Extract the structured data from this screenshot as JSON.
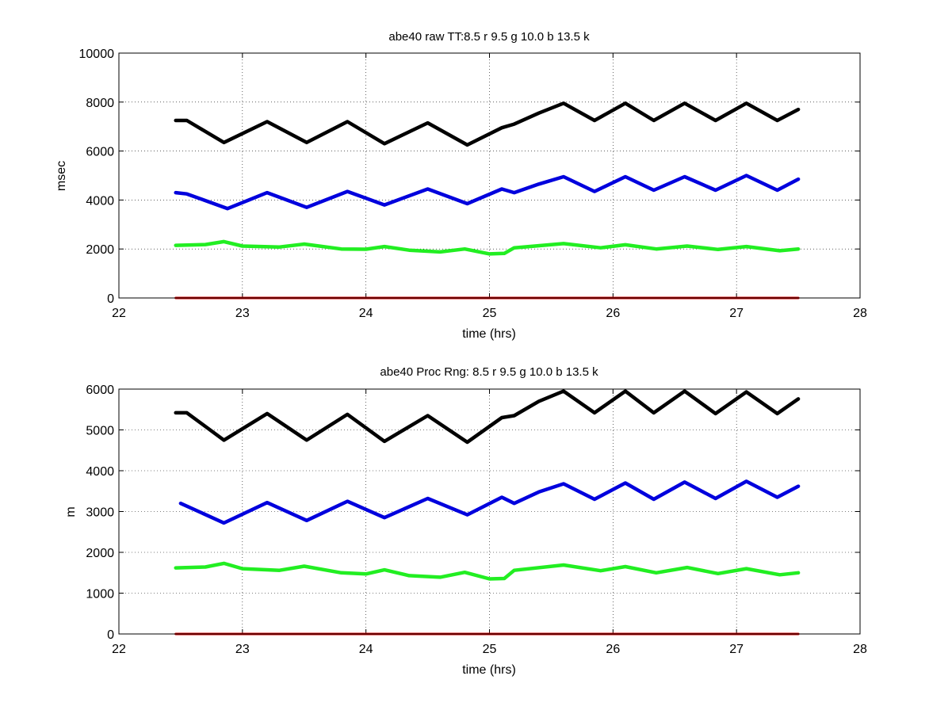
{
  "chart_data": [
    {
      "type": "scatter",
      "title": "abe40 raw TT:8.5 r  9.5 g  10.0 b  13.5 k",
      "xlabel": "time (hrs)",
      "ylabel": "msec",
      "xlim": [
        22,
        28
      ],
      "ylim": [
        0,
        10000
      ],
      "xticks": [
        "22",
        "23",
        "24",
        "25",
        "26",
        "27",
        "28"
      ],
      "yticks": [
        "0",
        "2000",
        "4000",
        "6000",
        "8000",
        "10000"
      ],
      "grid": true,
      "colors": {
        "r": "#cc0000",
        "g": "#22ee22",
        "b": "#0000dd",
        "k": "#000000"
      },
      "series": [
        {
          "color": "#000000",
          "x": [
            22.46,
            22.55,
            22.85,
            23.2,
            23.52,
            23.85,
            24.15,
            24.5,
            24.82,
            25.1,
            25.2,
            25.4,
            25.6,
            25.85,
            26.1,
            26.33,
            26.58,
            26.83,
            27.08,
            27.33,
            27.5
          ],
          "y": [
            7250,
            7250,
            6350,
            7200,
            6350,
            7200,
            6300,
            7150,
            6250,
            6950,
            7100,
            7550,
            7950,
            7250,
            7950,
            7250,
            7950,
            7250,
            7950,
            7250,
            7700
          ]
        },
        {
          "color": "#0000dd",
          "x": [
            22.46,
            22.55,
            22.88,
            23.2,
            23.52,
            23.85,
            24.15,
            24.5,
            24.82,
            25.1,
            25.2,
            25.4,
            25.6,
            25.85,
            26.1,
            26.33,
            26.58,
            26.83,
            27.08,
            27.33,
            27.5
          ],
          "y": [
            4300,
            4250,
            3650,
            4300,
            3700,
            4350,
            3800,
            4450,
            3850,
            4450,
            4300,
            4650,
            4950,
            4350,
            4950,
            4400,
            4950,
            4400,
            5000,
            4400,
            4850
          ]
        },
        {
          "color": "#22ee22",
          "x": [
            22.46,
            22.7,
            22.85,
            23.0,
            23.3,
            23.5,
            23.8,
            24.0,
            24.15,
            24.35,
            24.6,
            24.8,
            25.0,
            25.12,
            25.2,
            25.6,
            25.9,
            26.1,
            26.35,
            26.6,
            26.85,
            27.08,
            27.35,
            27.5
          ],
          "y": [
            2150,
            2180,
            2300,
            2120,
            2080,
            2200,
            2000,
            1990,
            2100,
            1950,
            1880,
            2000,
            1800,
            1820,
            2050,
            2220,
            2050,
            2170,
            2000,
            2120,
            1980,
            2100,
            1930,
            2000
          ]
        },
        {
          "color": "#cc0000",
          "x": [
            22.46,
            27.5
          ],
          "y": [
            0,
            0
          ]
        }
      ]
    },
    {
      "type": "scatter",
      "title": "abe40 Proc Rng: 8.5 r  9.5 g  10.0 b  13.5  k",
      "xlabel": "time (hrs)",
      "ylabel": "m",
      "xlim": [
        22,
        28
      ],
      "ylim": [
        0,
        6000
      ],
      "xticks": [
        "22",
        "23",
        "24",
        "25",
        "26",
        "27",
        "28"
      ],
      "yticks": [
        "0",
        "1000",
        "2000",
        "3000",
        "4000",
        "5000",
        "6000"
      ],
      "grid": true,
      "colors": {
        "r": "#cc0000",
        "g": "#22ee22",
        "b": "#0000dd",
        "k": "#000000"
      },
      "series": [
        {
          "color": "#000000",
          "x": [
            22.46,
            22.55,
            22.85,
            23.2,
            23.52,
            23.85,
            24.15,
            24.5,
            24.82,
            25.1,
            25.2,
            25.4,
            25.6,
            25.85,
            26.1,
            26.33,
            26.58,
            26.83,
            27.08,
            27.33,
            27.5
          ],
          "y": [
            5420,
            5420,
            4750,
            5400,
            4750,
            5380,
            4720,
            5350,
            4700,
            5300,
            5350,
            5700,
            5950,
            5420,
            5950,
            5420,
            5950,
            5400,
            5930,
            5400,
            5760
          ]
        },
        {
          "color": "#0000dd",
          "x": [
            22.5,
            22.85,
            23.2,
            23.52,
            23.85,
            24.15,
            24.5,
            24.82,
            25.1,
            25.2,
            25.4,
            25.6,
            25.85,
            26.1,
            26.33,
            26.58,
            26.83,
            27.08,
            27.33,
            27.5
          ],
          "y": [
            3200,
            2720,
            3220,
            2780,
            3250,
            2850,
            3320,
            2920,
            3350,
            3200,
            3480,
            3680,
            3300,
            3700,
            3300,
            3720,
            3320,
            3740,
            3350,
            3620
          ]
        },
        {
          "color": "#22ee22",
          "x": [
            22.46,
            22.7,
            22.85,
            23.0,
            23.3,
            23.5,
            23.8,
            24.0,
            24.15,
            24.35,
            24.6,
            24.8,
            25.0,
            25.12,
            25.2,
            25.6,
            25.9,
            26.1,
            26.35,
            26.6,
            26.85,
            27.08,
            27.35,
            27.5
          ],
          "y": [
            1620,
            1640,
            1730,
            1600,
            1560,
            1660,
            1500,
            1470,
            1570,
            1430,
            1390,
            1510,
            1350,
            1360,
            1560,
            1690,
            1550,
            1650,
            1500,
            1630,
            1480,
            1600,
            1450,
            1500
          ]
        },
        {
          "color": "#cc0000",
          "x": [
            22.46,
            27.5
          ],
          "y": [
            0,
            0
          ]
        }
      ]
    }
  ]
}
